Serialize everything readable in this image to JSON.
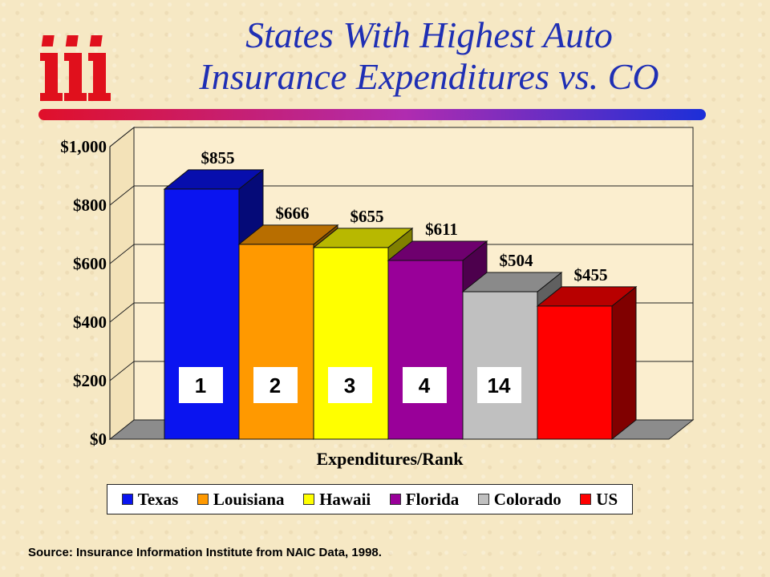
{
  "slide": {
    "title_line1": "States With Highest Auto",
    "title_line2": "Insurance Expenditures vs. CO",
    "source": "Source: Insurance Information Institute from NAIC Data, 1998.",
    "title_color": "#1f2fb4",
    "logo_icon": "iii-logo-icon"
  },
  "chart_data": {
    "type": "bar",
    "xlabel": "Expenditures/Rank",
    "ylabel": "",
    "ylim": [
      0,
      1000
    ],
    "yticks": [
      0,
      200,
      400,
      600,
      800,
      1000
    ],
    "ytick_labels": [
      "$0",
      "$200",
      "$400",
      "$600",
      "$800",
      "$1,000"
    ],
    "grid": true,
    "legend": "bottom",
    "categories": [
      "Texas",
      "Louisiana",
      "Hawaii",
      "Florida",
      "Colorado",
      "US"
    ],
    "values": [
      855,
      666,
      655,
      611,
      504,
      455
    ],
    "value_labels": [
      "$855",
      "$666",
      "$655",
      "$611",
      "$504",
      "$455"
    ],
    "ranks": [
      "1",
      "2",
      "3",
      "4",
      "14",
      ""
    ],
    "colors": [
      "#0a14f0",
      "#ff9900",
      "#ffff00",
      "#990099",
      "#c0c0c0",
      "#ff0000"
    ]
  }
}
